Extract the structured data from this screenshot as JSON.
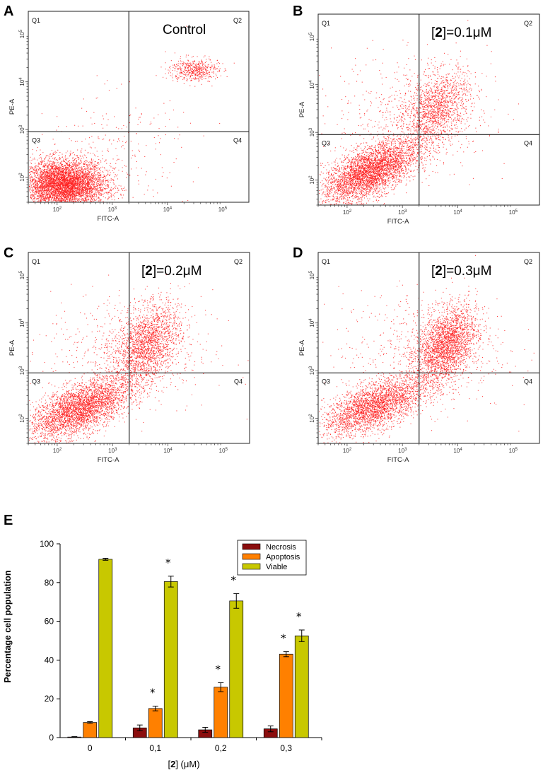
{
  "flow_panels": [
    {
      "id": "A",
      "condition": "Control",
      "quadrants": [
        "Q1",
        "Q2",
        "Q3",
        "Q4"
      ],
      "xlabel": "FITC-A",
      "ylabel": "PE-A"
    },
    {
      "id": "B",
      "condition_prefix": "[",
      "condition_bold": "2",
      "condition_suffix": "]=0.1μM",
      "quadrants": [
        "Q1",
        "Q2",
        "Q3",
        "Q4"
      ],
      "xlabel": "FITC-A",
      "ylabel": "PE-A"
    },
    {
      "id": "C",
      "condition_prefix": "[",
      "condition_bold": "2",
      "condition_suffix": "]=0.2μM",
      "quadrants": [
        "Q1",
        "Q2",
        "Q3",
        "Q4"
      ],
      "xlabel": "FITC-A",
      "ylabel": "PE-A"
    },
    {
      "id": "D",
      "condition_prefix": "[",
      "condition_bold": "2",
      "condition_suffix": "]=0.3μM",
      "quadrants": [
        "Q1",
        "Q2",
        "Q3",
        "Q4"
      ],
      "xlabel": "FITC-A",
      "ylabel": "PE-A"
    }
  ],
  "flow_ticks": {
    "x": [
      {
        "base": "10",
        "exp": "2"
      },
      {
        "base": "10",
        "exp": "3"
      },
      {
        "base": "10",
        "exp": "4"
      },
      {
        "base": "10",
        "exp": "5"
      }
    ],
    "y": [
      {
        "base": "10",
        "exp": "2"
      },
      {
        "base": "10",
        "exp": "3"
      },
      {
        "base": "10",
        "exp": "4"
      },
      {
        "base": "10",
        "exp": "5"
      }
    ]
  },
  "colors": {
    "dot": "#ff1a1a",
    "necrosis": "#8b0d0d",
    "apoptosis": "#ff8000",
    "viable": "#c8c800"
  },
  "chart_data": [
    {
      "type": "scatter",
      "panel": "A",
      "title": "Control",
      "xlabel": "FITC-A",
      "ylabel": "PE-A",
      "xscale": "log",
      "yscale": "log",
      "xlim": [
        30,
        300000
      ],
      "ylim": [
        30,
        300000
      ],
      "gate": {
        "x": 2000,
        "y": 900
      },
      "clusters": [
        {
          "center": [
            130,
            70
          ],
          "spread_log": [
            0.38,
            0.26
          ],
          "count": 5200
        },
        {
          "center": [
            30000,
            18000
          ],
          "spread_log": [
            0.22,
            0.12
          ],
          "count": 500
        },
        {
          "center": [
            1000,
            400
          ],
          "spread_log": [
            0.7,
            0.6
          ],
          "count": 250
        }
      ]
    },
    {
      "type": "scatter",
      "panel": "B",
      "title": "[2]=0.1μM",
      "xlabel": "FITC-A",
      "ylabel": "PE-A",
      "xscale": "log",
      "yscale": "log",
      "xlim": [
        30,
        300000
      ],
      "ylim": [
        30,
        300000
      ],
      "gate": {
        "x": 2000,
        "y": 900
      },
      "clusters": [
        {
          "center": [
            250,
            150
          ],
          "spread_log": [
            0.42,
            0.32
          ],
          "count": 3800,
          "corr": 0.6
        },
        {
          "center": [
            4000,
            3000
          ],
          "spread_log": [
            0.3,
            0.4
          ],
          "count": 1400,
          "corr": 0.4
        },
        {
          "center": [
            1500,
            2500
          ],
          "spread_log": [
            0.7,
            0.6
          ],
          "count": 600
        }
      ]
    },
    {
      "type": "scatter",
      "panel": "C",
      "title": "[2]=0.2μM",
      "xlabel": "FITC-A",
      "ylabel": "PE-A",
      "xscale": "log",
      "yscale": "log",
      "xlim": [
        30,
        300000
      ],
      "ylim": [
        30,
        300000
      ],
      "gate": {
        "x": 2000,
        "y": 900
      },
      "clusters": [
        {
          "center": [
            250,
            160
          ],
          "spread_log": [
            0.45,
            0.32
          ],
          "count": 3400,
          "corr": 0.6
        },
        {
          "center": [
            4000,
            3500
          ],
          "spread_log": [
            0.3,
            0.42
          ],
          "count": 1900,
          "corr": 0.4
        },
        {
          "center": [
            2000,
            2500
          ],
          "spread_log": [
            0.75,
            0.65
          ],
          "count": 600
        }
      ]
    },
    {
      "type": "scatter",
      "panel": "D",
      "title": "[2]=0.3μM",
      "xlabel": "FITC-A",
      "ylabel": "PE-A",
      "xscale": "log",
      "yscale": "log",
      "xlim": [
        30,
        300000
      ],
      "ylim": [
        30,
        300000
      ],
      "gate": {
        "x": 2000,
        "y": 900
      },
      "clusters": [
        {
          "center": [
            300,
            180
          ],
          "spread_log": [
            0.45,
            0.3
          ],
          "count": 2800,
          "corr": 0.6
        },
        {
          "center": [
            6000,
            3500
          ],
          "spread_log": [
            0.28,
            0.4
          ],
          "count": 2400,
          "corr": 0.4
        },
        {
          "center": [
            2500,
            2500
          ],
          "spread_log": [
            0.75,
            0.65
          ],
          "count": 600
        }
      ]
    },
    {
      "type": "bar",
      "panel": "E",
      "title": "",
      "categories": [
        "0",
        "0,1",
        "0,2",
        "0,3"
      ],
      "xlabel_prefix": "[",
      "xlabel_bold": "2",
      "xlabel_suffix": "] (μM)",
      "ylabel": "Percentage cell population",
      "ylim": [
        0,
        100
      ],
      "yticks": [
        "0",
        "20",
        "40",
        "60",
        "80",
        "100"
      ],
      "series": [
        {
          "name": "Necrosis",
          "color": "#8b0d0d",
          "values": [
            0.3,
            5,
            4,
            4.5
          ],
          "errors": [
            0.2,
            1.5,
            1.3,
            1.5
          ],
          "stars": [
            false,
            false,
            false,
            false
          ]
        },
        {
          "name": "Apoptosis",
          "color": "#ff8000",
          "values": [
            7.8,
            15,
            26,
            43
          ],
          "errors": [
            0.4,
            1.2,
            2.3,
            1.3
          ],
          "stars": [
            false,
            true,
            true,
            true
          ]
        },
        {
          "name": "Viable",
          "color": "#c8c800",
          "values": [
            92,
            80.5,
            70.5,
            52.5
          ],
          "errors": [
            0.5,
            2.8,
            3.8,
            3.0
          ],
          "stars": [
            false,
            true,
            true,
            true
          ]
        }
      ],
      "star_text": "*",
      "legend": [
        "Necrosis",
        "Apoptosis",
        "Viable"
      ],
      "legend_position": "top-right"
    }
  ]
}
